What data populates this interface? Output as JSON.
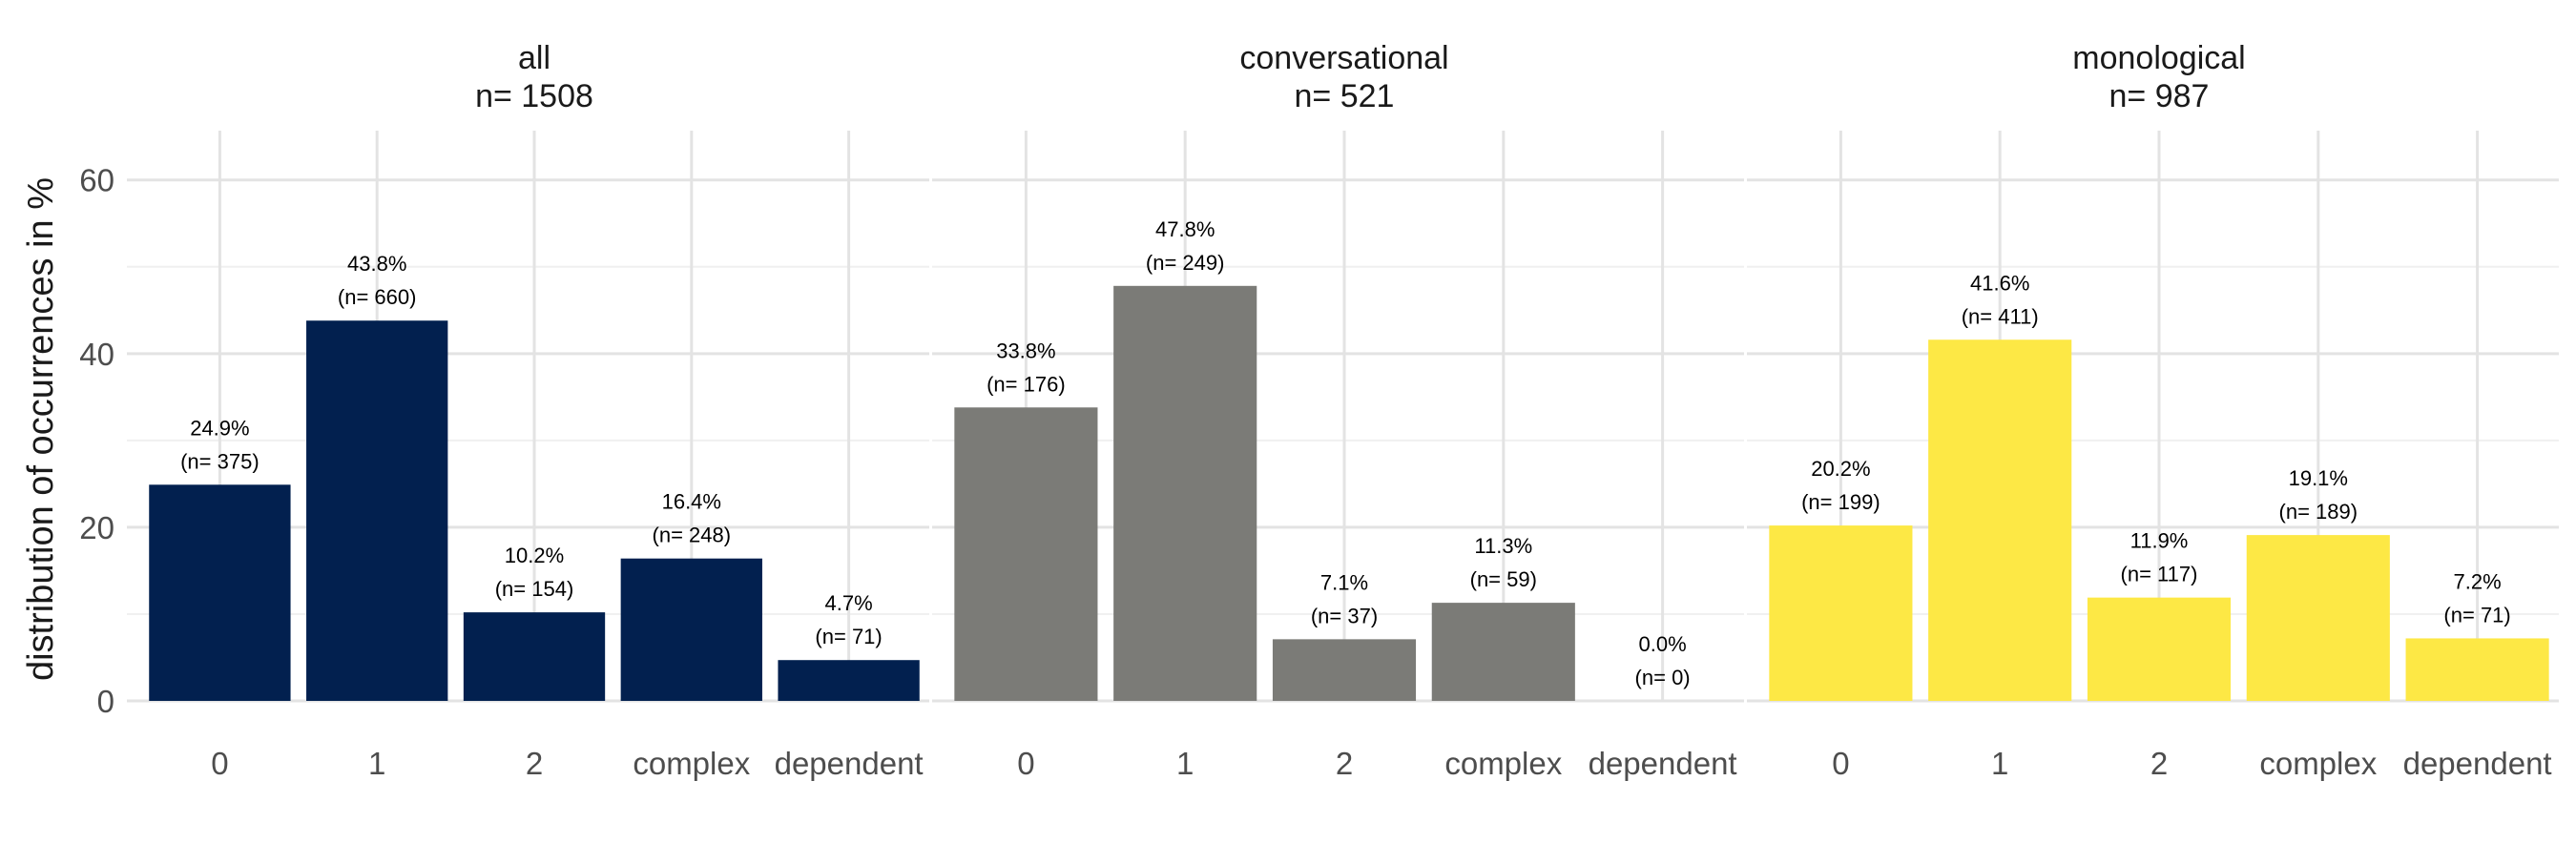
{
  "y_axis_label": "distribution of occurrences in %",
  "y_ticks": [
    0,
    20,
    40,
    60
  ],
  "categories": [
    "0",
    "1",
    "2",
    "complex",
    "dependent"
  ],
  "chart_data": [
    {
      "type": "bar",
      "facet_title": "all",
      "facet_n_label": "n=  1508",
      "color": "#02204F",
      "categories": [
        "0",
        "1",
        "2",
        "complex",
        "dependent"
      ],
      "values": [
        24.9,
        43.8,
        10.2,
        16.4,
        4.7
      ],
      "percent_labels": [
        "24.9%",
        "43.8%",
        "10.2%",
        "16.4%",
        "4.7%"
      ],
      "n_labels": [
        "(n= 375)",
        "(n= 660)",
        "(n= 154)",
        "(n= 248)",
        "(n= 71)"
      ],
      "ylabel": "distribution of occurrences in %",
      "ylim": [
        0,
        67
      ]
    },
    {
      "type": "bar",
      "facet_title": "conversational",
      "facet_n_label": "n=  521",
      "color": "#7B7B77",
      "categories": [
        "0",
        "1",
        "2",
        "complex",
        "dependent"
      ],
      "values": [
        33.8,
        47.8,
        7.1,
        11.3,
        0.0
      ],
      "percent_labels": [
        "33.8%",
        "47.8%",
        "7.1%",
        "11.3%",
        "0.0%"
      ],
      "n_labels": [
        "(n= 176)",
        "(n= 249)",
        "(n= 37)",
        "(n= 59)",
        "(n= 0)"
      ],
      "ylim": [
        0,
        67
      ]
    },
    {
      "type": "bar",
      "facet_title": "monological",
      "facet_n_label": "n=  987",
      "color": "#FDE845",
      "categories": [
        "0",
        "1",
        "2",
        "complex",
        "dependent"
      ],
      "values": [
        20.2,
        41.6,
        11.9,
        19.1,
        7.2
      ],
      "percent_labels": [
        "20.2%",
        "41.6%",
        "11.9%",
        "19.1%",
        "7.2%"
      ],
      "n_labels": [
        "(n= 199)",
        "(n= 411)",
        "(n= 117)",
        "(n= 189)",
        "(n= 71)"
      ],
      "ylim": [
        0,
        67
      ]
    }
  ]
}
